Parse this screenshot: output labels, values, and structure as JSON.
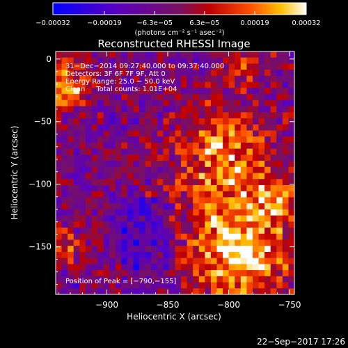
{
  "chart_data": {
    "type": "heatmap",
    "title": "Reconstructed RHESSI Image",
    "xlabel": "Heliocentric X (arcsec)",
    "ylabel": "Heliocentric Y (arcsec)",
    "xlim": [
      -942,
      -746
    ],
    "ylim": [
      -188,
      6
    ],
    "x_ticks": [
      -900,
      -850,
      -800,
      -750
    ],
    "y_ticks": [
      0,
      -50,
      -100,
      -150
    ],
    "x_tick_labels": [
      "−900",
      "−850",
      "−800",
      "−750"
    ],
    "y_tick_labels": [
      "0",
      "−50",
      "−100",
      "−150"
    ],
    "colorbar": {
      "range": [
        -0.00032,
        0.00032
      ],
      "ticks": [
        -0.00032,
        -0.00019,
        -6.3e-05,
        6.3e-05,
        0.00019,
        0.00032
      ],
      "tick_labels": [
        "−0.00032",
        "−0.00019",
        "−6.3e−05",
        "6.3e−05",
        "0.00019",
        "0.00032"
      ],
      "unit_label": "(photons cm⁻² s⁻¹ asec⁻²)"
    },
    "info_lines": [
      "31−Dec−2014 09:27:40.000 to 09:37:40.000",
      "Detectors: 3F 6F 7F 9F, Att 0",
      "Energy Range: 25.0 − 50.0 keV",
      "Clean     Total counts: 1.01E+04"
    ],
    "peak_label": "Position of Peak = [−790,−155]",
    "peak_position": [
      -790,
      -155
    ],
    "timestamp": "22−Sep−2017 17:26",
    "colors": {
      "background": "#000000",
      "foreground": "#ffffff"
    }
  }
}
